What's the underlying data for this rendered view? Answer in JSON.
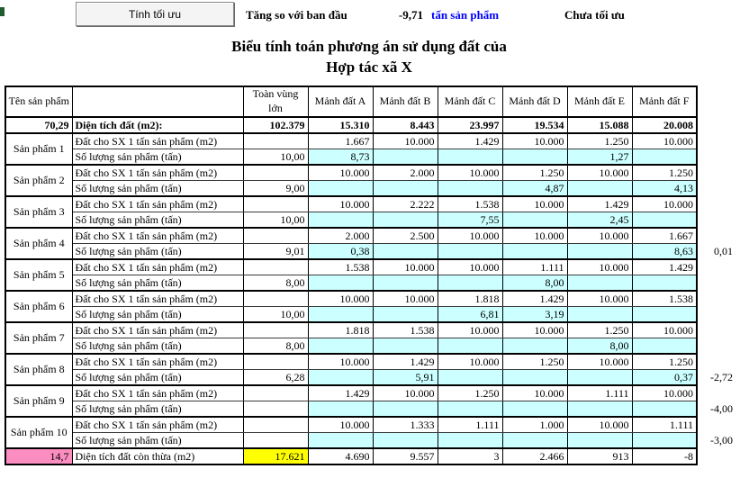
{
  "toolbar": {
    "button_label": "Tính tối ưu",
    "compare_label": "Tăng so với ban đầu",
    "compare_value": "-9,71",
    "compare_unit": "tấn sản phẩm",
    "status": "Chưa tối ưu"
  },
  "title": {
    "line1": "Biểu tính toán phương án sử dụng đất của",
    "line2": "Hợp tác xã X"
  },
  "colors": {
    "cyan_cell": "#CCFFFF",
    "yellow_cell": "#FFFF00",
    "pink_cell": "#FB8DC0",
    "unit_text_blue": "#0000FF",
    "green_marker": "#1E5B2E"
  },
  "table": {
    "header": {
      "col_product": "Tên sản phẩm",
      "col_region": "Toàn vùng lớn",
      "plots": [
        "Mảnh đất A",
        "Mảnh đất B",
        "Mảnh đất C",
        "Mảnh đất D",
        "Mảnh đất E",
        "Mảnh đất F"
      ]
    },
    "row_labels": {
      "land": "Đất cho SX 1 tấn sản phẩm (m2)",
      "qty": "Số lượng sản phẩm (tấn)"
    },
    "area_row": {
      "left_value": "70,29",
      "label": "Diện tích đất (m2):",
      "region": "102.379",
      "values": [
        "15.310",
        "8.443",
        "23.997",
        "19.534",
        "15.088",
        "20.008"
      ]
    },
    "products": [
      {
        "name": "Sản phẩm 1",
        "land": [
          "1.667",
          "10.000",
          "1.429",
          "10.000",
          "1.250",
          "10.000"
        ],
        "qty_region": "10,00",
        "qty": [
          "8,73",
          "",
          "",
          "",
          "1,27",
          ""
        ],
        "side": ""
      },
      {
        "name": "Sản phẩm 2",
        "land": [
          "10.000",
          "2.000",
          "10.000",
          "1.250",
          "10.000",
          "1.250"
        ],
        "qty_region": "9,00",
        "qty": [
          "",
          "",
          "",
          "4,87",
          "",
          "4,13"
        ],
        "side": ""
      },
      {
        "name": "Sản phẩm 3",
        "land": [
          "10.000",
          "2.222",
          "1.538",
          "10.000",
          "1.429",
          "10.000"
        ],
        "qty_region": "10,00",
        "qty": [
          "",
          "",
          "7,55",
          "",
          "2,45",
          ""
        ],
        "side": ""
      },
      {
        "name": "Sản phẩm 4",
        "land": [
          "2.000",
          "2.500",
          "10.000",
          "10.000",
          "10.000",
          "1.667"
        ],
        "qty_region": "9,01",
        "qty": [
          "0,38",
          "",
          "",
          "",
          "",
          "8,63"
        ],
        "side": "0,01"
      },
      {
        "name": "Sản phẩm 5",
        "land": [
          "1.538",
          "10.000",
          "10.000",
          "1.111",
          "10.000",
          "1.429"
        ],
        "qty_region": "8,00",
        "qty": [
          "",
          "",
          "",
          "8,00",
          "",
          ""
        ],
        "side": ""
      },
      {
        "name": "Sản phẩm 6",
        "land": [
          "10.000",
          "10.000",
          "1.818",
          "1.429",
          "10.000",
          "1.538"
        ],
        "qty_region": "10,00",
        "qty": [
          "",
          "",
          "6,81",
          "3,19",
          "",
          ""
        ],
        "side": ""
      },
      {
        "name": "Sản phẩm 7",
        "land": [
          "1.818",
          "1.538",
          "10.000",
          "10.000",
          "1.250",
          "10.000"
        ],
        "qty_region": "8,00",
        "qty": [
          "",
          "",
          "",
          "",
          "8,00",
          ""
        ],
        "side": ""
      },
      {
        "name": "Sản phẩm 8",
        "land": [
          "10.000",
          "1.429",
          "10.000",
          "1.250",
          "10.000",
          "1.250"
        ],
        "qty_region": "6,28",
        "qty": [
          "",
          "5,91",
          "",
          "",
          "",
          "0,37"
        ],
        "side": "-2,72"
      },
      {
        "name": "Sản phẩm 9",
        "land": [
          "1.429",
          "10.000",
          "1.250",
          "10.000",
          "1.111",
          "10.000"
        ],
        "qty_region": "",
        "qty": [
          "",
          "",
          "",
          "",
          "",
          ""
        ],
        "side": "-4,00"
      },
      {
        "name": "Sản phẩm 10",
        "land": [
          "10.000",
          "1.333",
          "1.111",
          "1.000",
          "10.000",
          "1.111"
        ],
        "qty_region": "",
        "qty": [
          "",
          "",
          "",
          "",
          "",
          ""
        ],
        "side": "-3,00"
      }
    ],
    "surplus_row": {
      "left_value": "14,7",
      "label": "Diện tích đất còn thừa (m2)",
      "region": "17.621",
      "values": [
        "4.690",
        "9.557",
        "3",
        "2.466",
        "913",
        "-8"
      ]
    }
  }
}
